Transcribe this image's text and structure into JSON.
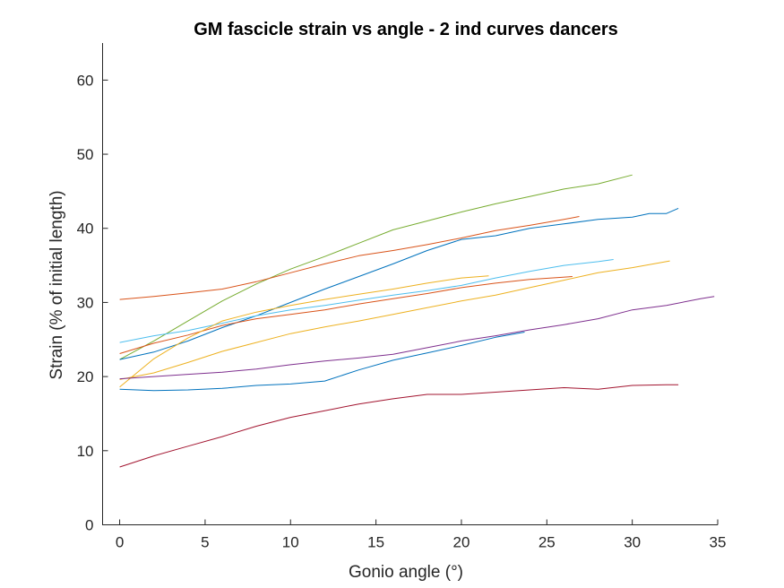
{
  "chart_data": {
    "type": "line",
    "title": "GM fascicle strain vs angle - 2 ind curves dancers",
    "xlabel": "Gonio angle (°)",
    "ylabel": "Strain (% of initial length)",
    "xlim": [
      -1,
      35
    ],
    "ylim": [
      0,
      65
    ],
    "xticks": [
      0,
      5,
      10,
      15,
      20,
      25,
      30,
      35
    ],
    "yticks": [
      0,
      10,
      20,
      30,
      40,
      50,
      60
    ],
    "grid": false,
    "series": [
      {
        "color": "#77AC30",
        "x": [
          0,
          2,
          4,
          6,
          8,
          10,
          12,
          14,
          16,
          18,
          20,
          22,
          24,
          26,
          28,
          30
        ],
        "y": [
          22.3,
          24.8,
          27.5,
          30.2,
          32.5,
          34.5,
          36.2,
          38.0,
          39.8,
          41.0,
          42.2,
          43.3,
          44.3,
          45.3,
          46.0,
          47.2
        ]
      },
      {
        "color": "#0072BD",
        "x": [
          0,
          2,
          4,
          6,
          8,
          10,
          12,
          14,
          16,
          18,
          20,
          22,
          24,
          26,
          28,
          30,
          31,
          32,
          32.7
        ],
        "y": [
          22.3,
          23.3,
          24.8,
          26.6,
          28.2,
          30.0,
          31.8,
          33.5,
          35.2,
          37.0,
          38.5,
          39.0,
          40.0,
          40.6,
          41.2,
          41.5,
          42.0,
          42.0,
          42.7
        ]
      },
      {
        "color": "#D95319",
        "x": [
          0,
          2,
          4,
          6,
          8,
          10,
          12,
          14,
          16,
          18,
          20,
          22,
          24,
          26,
          26.9
        ],
        "y": [
          30.4,
          30.8,
          31.3,
          31.8,
          32.8,
          34.0,
          35.2,
          36.3,
          37.0,
          37.8,
          38.7,
          39.7,
          40.4,
          41.2,
          41.6
        ]
      },
      {
        "color": "#D95319",
        "x": [
          0,
          2,
          4,
          6,
          8,
          10,
          12,
          14,
          16,
          18,
          20,
          22,
          24,
          26.5
        ],
        "y": [
          23.1,
          24.5,
          25.6,
          26.9,
          27.8,
          28.4,
          29.0,
          29.8,
          30.5,
          31.2,
          32.0,
          32.6,
          33.1,
          33.5
        ]
      },
      {
        "color": "#4DBEEE",
        "x": [
          0,
          2,
          4,
          6,
          8,
          10,
          12,
          14,
          16,
          18,
          20,
          22,
          24,
          26,
          28,
          28.9
        ],
        "y": [
          24.6,
          25.5,
          26.2,
          27.2,
          28.2,
          29.0,
          29.6,
          30.3,
          31.0,
          31.6,
          32.3,
          33.3,
          34.2,
          35.0,
          35.5,
          35.8
        ]
      },
      {
        "color": "#EDB120",
        "x": [
          0,
          2,
          4,
          6,
          8,
          10,
          12,
          14,
          16,
          18,
          20,
          21.6
        ],
        "y": [
          18.6,
          22.4,
          25.2,
          27.5,
          28.7,
          29.6,
          30.4,
          31.1,
          31.8,
          32.6,
          33.3,
          33.6
        ]
      },
      {
        "color": "#EDB120",
        "x": [
          0,
          2,
          4,
          6,
          8,
          10,
          12,
          14,
          16,
          18,
          20,
          22,
          24,
          26,
          28,
          30,
          32.2
        ],
        "y": [
          19.6,
          20.5,
          21.9,
          23.4,
          24.6,
          25.8,
          26.7,
          27.5,
          28.4,
          29.3,
          30.2,
          31.0,
          32.0,
          33.0,
          34.0,
          34.7,
          35.6
        ]
      },
      {
        "color": "#7E2F8E",
        "x": [
          0,
          2,
          4,
          6,
          8,
          10,
          12,
          14,
          16,
          18,
          20,
          22,
          24,
          26,
          28,
          30,
          32,
          34,
          34.8
        ],
        "y": [
          19.7,
          20.0,
          20.3,
          20.6,
          21.0,
          21.6,
          22.1,
          22.5,
          23.0,
          23.9,
          24.8,
          25.5,
          26.3,
          27.0,
          27.8,
          29.0,
          29.6,
          30.5,
          30.8
        ]
      },
      {
        "color": "#0072BD",
        "x": [
          0,
          2,
          4,
          6,
          8,
          10,
          12,
          14,
          16,
          18,
          20,
          22,
          23.7
        ],
        "y": [
          18.3,
          18.1,
          18.2,
          18.4,
          18.8,
          19.0,
          19.4,
          20.9,
          22.2,
          23.2,
          24.2,
          25.3,
          26.0
        ]
      },
      {
        "color": "#A2142F",
        "x": [
          0,
          2,
          4,
          6,
          8,
          10,
          12,
          14,
          16,
          18,
          20,
          22,
          24,
          26,
          28,
          30,
          32,
          32.7
        ],
        "y": [
          7.8,
          9.3,
          10.6,
          11.9,
          13.3,
          14.5,
          15.4,
          16.3,
          17.0,
          17.6,
          17.6,
          17.9,
          18.2,
          18.5,
          18.3,
          18.8,
          18.9,
          18.9
        ]
      }
    ]
  }
}
